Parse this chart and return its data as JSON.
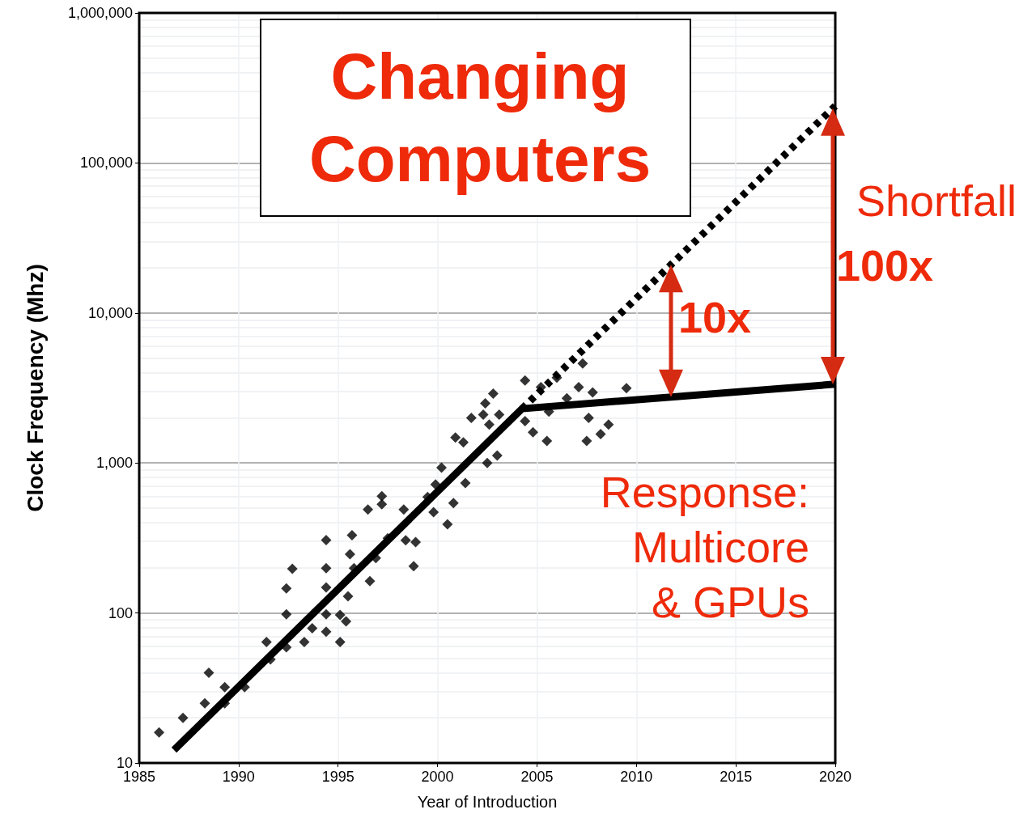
{
  "chart_data": {
    "type": "scatter",
    "title": "Changing Computers",
    "xlabel": "Year of Introduction",
    "ylabel": "Clock Frequency (Mhz)",
    "xlim": [
      1985,
      2020
    ],
    "xticks": [
      1985,
      1990,
      1995,
      2000,
      2005,
      2010,
      2015,
      2020
    ],
    "ylim": [
      10,
      1000000
    ],
    "yticks": [
      10,
      {
        "value": 100,
        "label": "100"
      },
      {
        "value": 1000,
        "label": "1,000"
      },
      {
        "value": 10000,
        "label": "10,000"
      },
      {
        "value": 100000,
        "label": "100,000"
      },
      {
        "value": 1000000,
        "label": "1,000,000"
      }
    ],
    "log": "y",
    "grid": true,
    "series": [
      {
        "marker": "diamond",
        "color": "#000000",
        "x": [
          1986.0,
          1987.2,
          1988.3,
          1988.5,
          1989.3,
          1989.3,
          1990.3,
          1991.4,
          1991.6,
          1992.4,
          1992.4,
          1992.7,
          1992.4,
          1993.3,
          1993.7,
          1994.4,
          1994.4,
          1994.4,
          1994.4,
          1994.4,
          1995.1,
          1995.1,
          1995.4,
          1995.5,
          1995.7,
          1995.6,
          1995.8,
          1996.5,
          1996.6,
          1997.2,
          1997.2,
          1996.9,
          1997.5,
          1998.3,
          1998.8,
          1998.9,
          1998.4,
          1999.5,
          1999.8,
          1999.9,
          2000.2,
          2000.5,
          2000.8,
          2000.9,
          2001.3,
          2001.4,
          2001.7,
          2002.3,
          2002.6,
          2002.8,
          2002.4,
          2003.1,
          2003.0,
          2002.5,
          2004.4,
          2004.8,
          2004.4,
          2005.2,
          2005.5,
          2006.0,
          2006.5,
          2005.6,
          2007.3,
          2007.1,
          2007.5,
          2007.6,
          2008.6,
          2008.2,
          2007.8,
          2009.5
        ],
        "values": [
          16,
          20,
          25,
          40,
          32,
          25,
          32,
          64,
          49,
          59,
          146,
          197,
          98,
          64,
          79,
          199,
          148,
          306,
          75,
          98,
          64,
          97,
          88,
          129,
          330,
          246,
          199,
          490,
          163,
          530,
          600,
          232,
          315,
          490,
          205,
          297,
          305,
          594,
          470,
          720,
          930,
          390,
          540,
          1480,
          1370,
          735,
          2000,
          2100,
          1800,
          2900,
          2500,
          2100,
          1120,
          1000,
          3550,
          1600,
          1900,
          3200,
          1400,
          3700,
          2700,
          2200,
          4600,
          3200,
          1400,
          2000,
          1800,
          1560,
          2950,
          3150
        ]
      },
      {
        "type": "line",
        "marker": "none",
        "line_style": "solid",
        "color": "#000000",
        "x": [
          1986.75,
          2004.25,
          2020
        ],
        "values": [
          12.2,
          2300,
          3350
        ]
      },
      {
        "type": "line",
        "marker": "none",
        "line_style": "dotted",
        "color": "#000000",
        "x": [
          2004.25,
          2020
        ],
        "values": [
          2300,
          240000
        ]
      }
    ],
    "annotations": [
      "Shortfall",
      "10x",
      "100x",
      "Response:\nMulticore\n& GPUs"
    ]
  }
}
